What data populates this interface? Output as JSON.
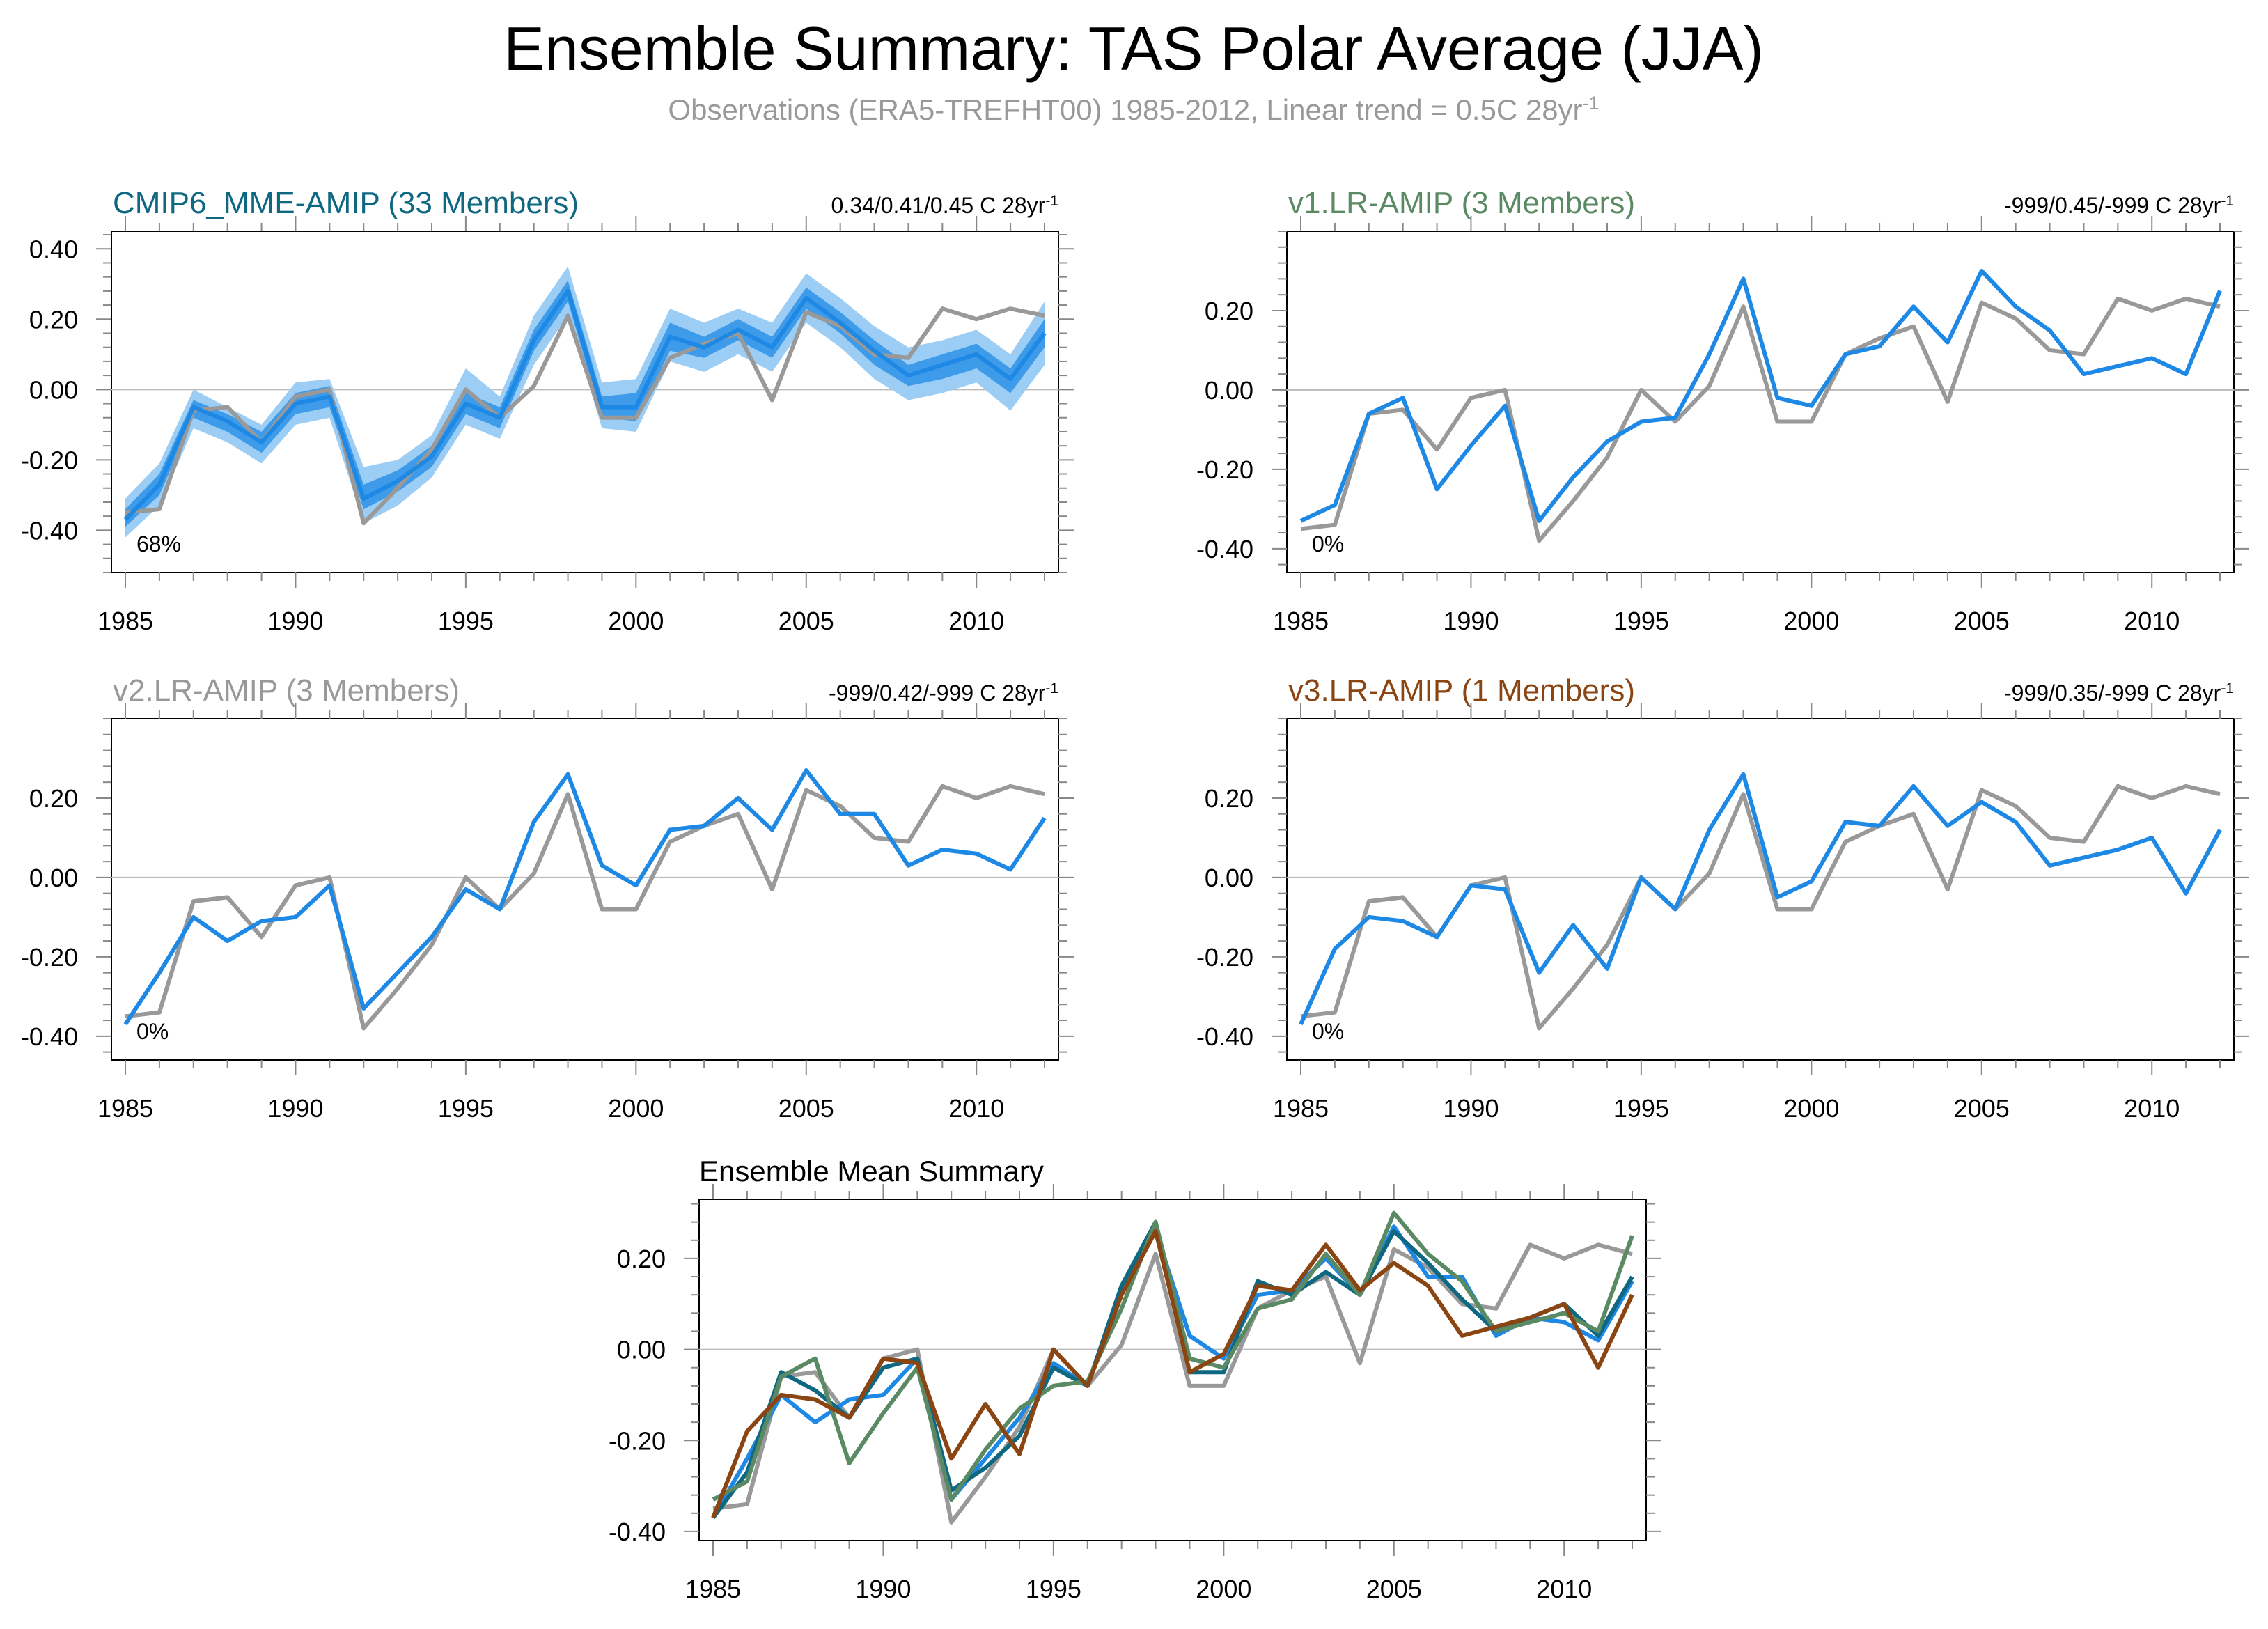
{
  "title": "Ensemble Summary: TAS Polar Average (JJA)",
  "subtitle": {
    "text": "Observations (ERA5-TREFHT00) 1985-2012, Linear trend = 0.5C 28yr",
    "superscript": "-1"
  },
  "colors": {
    "model": "#1e88e5",
    "observations": "#999999",
    "band_outer": "#9ccdf5",
    "band_inner": "#3d9bea",
    "title_cmip6": "#0f6882",
    "title_v1": "#5a8a63",
    "title_v2": "#999999",
    "title_v3": "#8b4513",
    "zero_line": "#bbbbbb"
  },
  "chart_data": [
    {
      "id": "cmip6",
      "type": "line",
      "title": "CMIP6_MME-AMIP (33 Members)",
      "trend_text": "0.34/0.41/0.45 C 28yr",
      "trend_superscript": "-1",
      "corner_label": "68%",
      "xlabel": "",
      "ylabel": "",
      "xlim": [
        1985,
        2012
      ],
      "ylim": [
        -0.52,
        0.45
      ],
      "xticks": [
        1985,
        1990,
        1995,
        2000,
        2005,
        2010
      ],
      "yticks": [
        -0.4,
        -0.2,
        0.0,
        0.2,
        0.4
      ],
      "ytick_labels": [
        "-0.40",
        "-0.20",
        "0.00",
        "0.20",
        "0.40"
      ],
      "x": [
        1985,
        1986,
        1987,
        1988,
        1989,
        1990,
        1991,
        1992,
        1993,
        1994,
        1995,
        1996,
        1997,
        1998,
        1999,
        2000,
        2001,
        2002,
        2003,
        2004,
        2005,
        2006,
        2007,
        2008,
        2009,
        2010,
        2011,
        2012
      ],
      "observations": [
        -0.35,
        -0.34,
        -0.06,
        -0.05,
        -0.15,
        -0.02,
        0.0,
        -0.38,
        -0.28,
        -0.17,
        0.0,
        -0.08,
        0.01,
        0.21,
        -0.08,
        -0.08,
        0.09,
        0.13,
        0.16,
        -0.03,
        0.22,
        0.18,
        0.1,
        0.09,
        0.23,
        0.2,
        0.23,
        0.21
      ],
      "ensemble_mean": [
        -0.37,
        -0.27,
        -0.05,
        -0.09,
        -0.15,
        -0.04,
        -0.02,
        -0.31,
        -0.26,
        -0.19,
        -0.04,
        -0.08,
        0.14,
        0.28,
        -0.05,
        -0.05,
        0.15,
        0.12,
        0.17,
        0.12,
        0.26,
        0.19,
        0.11,
        0.04,
        0.07,
        0.1,
        0.03,
        0.16
      ],
      "band_outer_upper": [
        -0.31,
        -0.21,
        0.0,
        -0.05,
        -0.1,
        0.02,
        0.03,
        -0.22,
        -0.2,
        -0.13,
        0.06,
        -0.02,
        0.21,
        0.35,
        0.02,
        0.03,
        0.23,
        0.19,
        0.23,
        0.19,
        0.33,
        0.26,
        0.18,
        0.12,
        0.14,
        0.17,
        0.1,
        0.25
      ],
      "band_outer_lower": [
        -0.42,
        -0.33,
        -0.11,
        -0.15,
        -0.21,
        -0.1,
        -0.08,
        -0.38,
        -0.33,
        -0.25,
        -0.1,
        -0.14,
        0.07,
        0.21,
        -0.11,
        -0.12,
        0.08,
        0.05,
        0.1,
        0.05,
        0.19,
        0.12,
        0.03,
        -0.03,
        -0.01,
        0.02,
        -0.06,
        0.07
      ],
      "band_inner_upper": [
        -0.34,
        -0.24,
        -0.03,
        -0.07,
        -0.12,
        -0.01,
        0.01,
        -0.27,
        -0.23,
        -0.16,
        -0.01,
        -0.05,
        0.17,
        0.31,
        -0.02,
        -0.01,
        0.19,
        0.15,
        0.2,
        0.15,
        0.29,
        0.22,
        0.14,
        0.07,
        0.1,
        0.13,
        0.06,
        0.2
      ],
      "band_inner_lower": [
        -0.39,
        -0.3,
        -0.08,
        -0.12,
        -0.18,
        -0.07,
        -0.05,
        -0.34,
        -0.29,
        -0.22,
        -0.07,
        -0.11,
        0.11,
        0.25,
        -0.08,
        -0.09,
        0.11,
        0.09,
        0.14,
        0.09,
        0.23,
        0.16,
        0.07,
        0.01,
        0.03,
        0.06,
        -0.01,
        0.12
      ]
    },
    {
      "id": "v1",
      "type": "line",
      "title": "v1.LR-AMIP (3 Members)",
      "trend_text": "-999/0.45/-999 C 28yr",
      "trend_superscript": "-1",
      "corner_label": "0%",
      "xlabel": "",
      "ylabel": "",
      "xlim": [
        1985,
        2012
      ],
      "ylim": [
        -0.46,
        0.4
      ],
      "xticks": [
        1985,
        1990,
        1995,
        2000,
        2005,
        2010
      ],
      "yticks": [
        -0.4,
        -0.2,
        0.0,
        0.2
      ],
      "ytick_labels": [
        "-0.40",
        "-0.20",
        "0.00",
        "0.20"
      ],
      "x": [
        1985,
        1986,
        1987,
        1988,
        1989,
        1990,
        1991,
        1992,
        1993,
        1994,
        1995,
        1996,
        1997,
        1998,
        1999,
        2000,
        2001,
        2002,
        2003,
        2004,
        2005,
        2006,
        2007,
        2008,
        2009,
        2010,
        2011,
        2012
      ],
      "observations": [
        -0.35,
        -0.34,
        -0.06,
        -0.05,
        -0.15,
        -0.02,
        0.0,
        -0.38,
        -0.28,
        -0.17,
        0.0,
        -0.08,
        0.01,
        0.21,
        -0.08,
        -0.08,
        0.09,
        0.13,
        0.16,
        -0.03,
        0.22,
        0.18,
        0.1,
        0.09,
        0.23,
        0.2,
        0.23,
        0.21
      ],
      "ensemble_mean": [
        -0.33,
        -0.29,
        -0.06,
        -0.02,
        -0.25,
        -0.14,
        -0.04,
        -0.33,
        -0.22,
        -0.13,
        -0.08,
        -0.07,
        0.09,
        0.28,
        -0.02,
        -0.04,
        0.09,
        0.11,
        0.21,
        0.12,
        0.3,
        0.21,
        0.15,
        0.04,
        0.06,
        0.08,
        0.04,
        0.25
      ]
    },
    {
      "id": "v2",
      "type": "line",
      "title": "v2.LR-AMIP (3 Members)",
      "trend_text": "-999/0.42/-999 C 28yr",
      "trend_superscript": "-1",
      "corner_label": "0%",
      "xlabel": "",
      "ylabel": "",
      "xlim": [
        1985,
        2012
      ],
      "ylim": [
        -0.46,
        0.4
      ],
      "xticks": [
        1985,
        1990,
        1995,
        2000,
        2005,
        2010
      ],
      "yticks": [
        -0.4,
        -0.2,
        0.0,
        0.2
      ],
      "ytick_labels": [
        "-0.40",
        "-0.20",
        "0.00",
        "0.20"
      ],
      "x": [
        1985,
        1986,
        1987,
        1988,
        1989,
        1990,
        1991,
        1992,
        1993,
        1994,
        1995,
        1996,
        1997,
        1998,
        1999,
        2000,
        2001,
        2002,
        2003,
        2004,
        2005,
        2006,
        2007,
        2008,
        2009,
        2010,
        2011,
        2012
      ],
      "observations": [
        -0.35,
        -0.34,
        -0.06,
        -0.05,
        -0.15,
        -0.02,
        0.0,
        -0.38,
        -0.28,
        -0.17,
        0.0,
        -0.08,
        0.01,
        0.21,
        -0.08,
        -0.08,
        0.09,
        0.13,
        0.16,
        -0.03,
        0.22,
        0.18,
        0.1,
        0.09,
        0.23,
        0.2,
        0.23,
        0.21
      ],
      "ensemble_mean": [
        -0.37,
        -0.24,
        -0.1,
        -0.16,
        -0.11,
        -0.1,
        -0.02,
        -0.33,
        -0.24,
        -0.15,
        -0.03,
        -0.08,
        0.14,
        0.26,
        0.03,
        -0.02,
        0.12,
        0.13,
        0.2,
        0.12,
        0.27,
        0.16,
        0.16,
        0.03,
        0.07,
        0.06,
        0.02,
        0.15
      ]
    },
    {
      "id": "v3",
      "type": "line",
      "title": "v3.LR-AMIP (1 Members)",
      "trend_text": "-999/0.35/-999 C 28yr",
      "trend_superscript": "-1",
      "corner_label": "0%",
      "xlabel": "",
      "ylabel": "",
      "xlim": [
        1985,
        2012
      ],
      "ylim": [
        -0.46,
        0.4
      ],
      "xticks": [
        1985,
        1990,
        1995,
        2000,
        2005,
        2010
      ],
      "yticks": [
        -0.4,
        -0.2,
        0.0,
        0.2
      ],
      "ytick_labels": [
        "-0.40",
        "-0.20",
        "0.00",
        "0.20"
      ],
      "x": [
        1985,
        1986,
        1987,
        1988,
        1989,
        1990,
        1991,
        1992,
        1993,
        1994,
        1995,
        1996,
        1997,
        1998,
        1999,
        2000,
        2001,
        2002,
        2003,
        2004,
        2005,
        2006,
        2007,
        2008,
        2009,
        2010,
        2011,
        2012
      ],
      "observations": [
        -0.35,
        -0.34,
        -0.06,
        -0.05,
        -0.15,
        -0.02,
        0.0,
        -0.38,
        -0.28,
        -0.17,
        0.0,
        -0.08,
        0.01,
        0.21,
        -0.08,
        -0.08,
        0.09,
        0.13,
        0.16,
        -0.03,
        0.22,
        0.18,
        0.1,
        0.09,
        0.23,
        0.2,
        0.23,
        0.21
      ],
      "ensemble_mean": [
        -0.37,
        -0.18,
        -0.1,
        -0.11,
        -0.15,
        -0.02,
        -0.03,
        -0.24,
        -0.12,
        -0.23,
        0.0,
        -0.08,
        0.12,
        0.26,
        -0.05,
        -0.01,
        0.14,
        0.13,
        0.23,
        0.13,
        0.19,
        0.14,
        0.03,
        0.05,
        0.07,
        0.1,
        -0.04,
        0.12
      ]
    },
    {
      "id": "mean_summary",
      "type": "line",
      "title": "Ensemble Mean Summary",
      "xlabel": "",
      "ylabel": "",
      "xlim": [
        1985,
        2012
      ],
      "ylim": [
        -0.42,
        0.33
      ],
      "xticks": [
        1985,
        1990,
        1995,
        2000,
        2005,
        2010
      ],
      "yticks": [
        -0.4,
        -0.2,
        0.0,
        0.2
      ],
      "ytick_labels": [
        "-0.40",
        "-0.20",
        "0.00",
        "0.20"
      ],
      "x": [
        1985,
        1986,
        1987,
        1988,
        1989,
        1990,
        1991,
        1992,
        1993,
        1994,
        1995,
        1996,
        1997,
        1998,
        1999,
        2000,
        2001,
        2002,
        2003,
        2004,
        2005,
        2006,
        2007,
        2008,
        2009,
        2010,
        2011,
        2012
      ],
      "series": [
        {
          "color_key": "observations",
          "values": [
            -0.35,
            -0.34,
            -0.06,
            -0.05,
            -0.15,
            -0.02,
            0.0,
            -0.38,
            -0.28,
            -0.17,
            0.0,
            -0.08,
            0.01,
            0.21,
            -0.08,
            -0.08,
            0.09,
            0.13,
            0.16,
            -0.03,
            0.22,
            0.18,
            0.1,
            0.09,
            0.23,
            0.2,
            0.23,
            0.21
          ]
        },
        {
          "color_key": "model",
          "values": [
            -0.37,
            -0.24,
            -0.1,
            -0.16,
            -0.11,
            -0.1,
            -0.02,
            -0.33,
            -0.24,
            -0.15,
            -0.03,
            -0.08,
            0.14,
            0.26,
            0.03,
            -0.02,
            0.12,
            0.13,
            0.2,
            0.12,
            0.27,
            0.16,
            0.16,
            0.03,
            0.07,
            0.06,
            0.02,
            0.15
          ]
        },
        {
          "color_key": "title_cmip6",
          "values": [
            -0.37,
            -0.27,
            -0.05,
            -0.09,
            -0.15,
            -0.04,
            -0.02,
            -0.31,
            -0.26,
            -0.19,
            -0.04,
            -0.08,
            0.14,
            0.28,
            -0.05,
            -0.05,
            0.15,
            0.12,
            0.17,
            0.12,
            0.26,
            0.19,
            0.11,
            0.04,
            0.07,
            0.1,
            0.03,
            0.16
          ]
        },
        {
          "color_key": "title_v1",
          "values": [
            -0.33,
            -0.29,
            -0.06,
            -0.02,
            -0.25,
            -0.14,
            -0.04,
            -0.33,
            -0.22,
            -0.13,
            -0.08,
            -0.07,
            0.09,
            0.28,
            -0.02,
            -0.04,
            0.09,
            0.11,
            0.21,
            0.12,
            0.3,
            0.21,
            0.15,
            0.04,
            0.06,
            0.08,
            0.04,
            0.25
          ]
        },
        {
          "color_key": "title_v3",
          "values": [
            -0.37,
            -0.18,
            -0.1,
            -0.11,
            -0.15,
            -0.02,
            -0.03,
            -0.24,
            -0.12,
            -0.23,
            0.0,
            -0.08,
            0.12,
            0.26,
            -0.05,
            -0.01,
            0.14,
            0.13,
            0.23,
            0.13,
            0.19,
            0.14,
            0.03,
            0.05,
            0.07,
            0.1,
            -0.04,
            0.12
          ]
        }
      ]
    }
  ]
}
